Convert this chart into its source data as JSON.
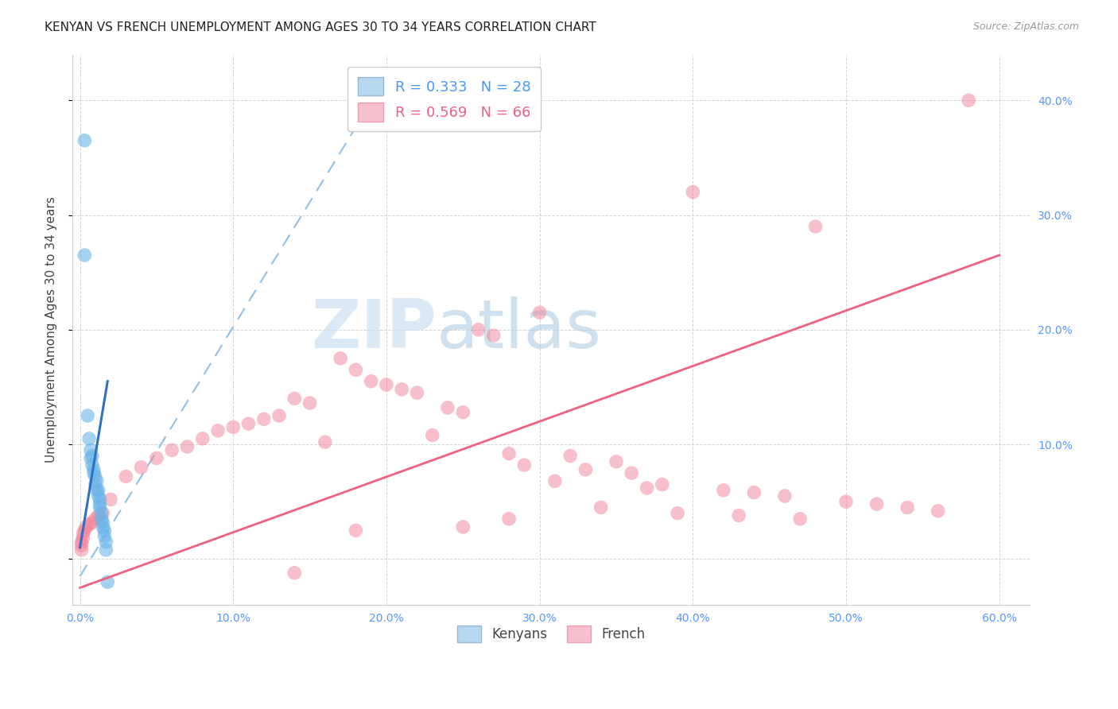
{
  "title": "KENYAN VS FRENCH UNEMPLOYMENT AMONG AGES 30 TO 34 YEARS CORRELATION CHART",
  "source": "Source: ZipAtlas.com",
  "ylabel": "Unemployment Among Ages 30 to 34 years",
  "yticks": [
    0.0,
    0.1,
    0.2,
    0.3,
    0.4
  ],
  "ytick_labels_left": [
    "",
    "10.0%",
    "20.0%",
    "30.0%",
    "40.0%"
  ],
  "ytick_labels_right": [
    "",
    "10.0%",
    "20.0%",
    "30.0%",
    "40.0%"
  ],
  "xticks": [
    0.0,
    0.1,
    0.2,
    0.3,
    0.4,
    0.5,
    0.6
  ],
  "xtick_labels": [
    "0.0%",
    "10.0%",
    "20.0%",
    "30.0%",
    "40.0%",
    "50.0%",
    "60.0%"
  ],
  "xlim": [
    -0.005,
    0.62
  ],
  "ylim": [
    -0.04,
    0.44
  ],
  "watermark_zip": "ZIP",
  "watermark_atlas": "atlas",
  "kenyan_color": "#6ab4e8",
  "french_color": "#f08098",
  "kenyan_line_color": "#3070c0",
  "french_line_color": "#f06080",
  "kenyan_dashed_color": "#90c0e8",
  "legend_label_kenyan": "R = 0.333   N = 28",
  "legend_label_french": "R = 0.569   N = 66",
  "legend_kenyan_patch": "#b8d8f0",
  "legend_french_patch": "#f8c0ce",
  "legend_text_kenyan": "#4499ff",
  "legend_text_french": "#f06080",
  "kenyan_scatter": [
    [
      0.003,
      0.365
    ],
    [
      0.003,
      0.265
    ],
    [
      0.005,
      0.125
    ],
    [
      0.006,
      0.105
    ],
    [
      0.007,
      0.095
    ],
    [
      0.007,
      0.088
    ],
    [
      0.008,
      0.09
    ],
    [
      0.008,
      0.082
    ],
    [
      0.009,
      0.078
    ],
    [
      0.009,
      0.075
    ],
    [
      0.01,
      0.072
    ],
    [
      0.01,
      0.065
    ],
    [
      0.011,
      0.068
    ],
    [
      0.011,
      0.06
    ],
    [
      0.012,
      0.06
    ],
    [
      0.012,
      0.055
    ],
    [
      0.013,
      0.052
    ],
    [
      0.013,
      0.048
    ],
    [
      0.013,
      0.045
    ],
    [
      0.014,
      0.04
    ],
    [
      0.014,
      0.035
    ],
    [
      0.015,
      0.032
    ],
    [
      0.015,
      0.028
    ],
    [
      0.016,
      0.025
    ],
    [
      0.016,
      0.02
    ],
    [
      0.017,
      0.015
    ],
    [
      0.017,
      0.008
    ],
    [
      0.018,
      -0.02
    ]
  ],
  "french_scatter": [
    [
      0.58,
      0.4
    ],
    [
      0.4,
      0.32
    ],
    [
      0.48,
      0.29
    ],
    [
      0.3,
      0.215
    ],
    [
      0.26,
      0.2
    ],
    [
      0.27,
      0.195
    ],
    [
      0.17,
      0.175
    ],
    [
      0.18,
      0.165
    ],
    [
      0.19,
      0.155
    ],
    [
      0.2,
      0.152
    ],
    [
      0.21,
      0.148
    ],
    [
      0.22,
      0.145
    ],
    [
      0.14,
      0.14
    ],
    [
      0.15,
      0.136
    ],
    [
      0.24,
      0.132
    ],
    [
      0.25,
      0.128
    ],
    [
      0.13,
      0.125
    ],
    [
      0.12,
      0.122
    ],
    [
      0.11,
      0.118
    ],
    [
      0.1,
      0.115
    ],
    [
      0.09,
      0.112
    ],
    [
      0.23,
      0.108
    ],
    [
      0.08,
      0.105
    ],
    [
      0.16,
      0.102
    ],
    [
      0.07,
      0.098
    ],
    [
      0.06,
      0.095
    ],
    [
      0.28,
      0.092
    ],
    [
      0.32,
      0.09
    ],
    [
      0.05,
      0.088
    ],
    [
      0.35,
      0.085
    ],
    [
      0.29,
      0.082
    ],
    [
      0.04,
      0.08
    ],
    [
      0.33,
      0.078
    ],
    [
      0.36,
      0.075
    ],
    [
      0.03,
      0.072
    ],
    [
      0.31,
      0.068
    ],
    [
      0.38,
      0.065
    ],
    [
      0.37,
      0.062
    ],
    [
      0.42,
      0.06
    ],
    [
      0.44,
      0.058
    ],
    [
      0.46,
      0.055
    ],
    [
      0.02,
      0.052
    ],
    [
      0.5,
      0.05
    ],
    [
      0.52,
      0.048
    ],
    [
      0.54,
      0.045
    ],
    [
      0.56,
      0.042
    ],
    [
      0.015,
      0.04
    ],
    [
      0.012,
      0.038
    ],
    [
      0.01,
      0.035
    ],
    [
      0.008,
      0.032
    ],
    [
      0.006,
      0.03
    ],
    [
      0.004,
      0.028
    ],
    [
      0.003,
      0.025
    ],
    [
      0.002,
      0.022
    ],
    [
      0.002,
      0.018
    ],
    [
      0.001,
      0.015
    ],
    [
      0.001,
      0.012
    ],
    [
      0.001,
      0.008
    ],
    [
      0.34,
      0.045
    ],
    [
      0.39,
      0.04
    ],
    [
      0.43,
      0.038
    ],
    [
      0.47,
      0.035
    ],
    [
      0.28,
      0.035
    ],
    [
      0.25,
      0.028
    ],
    [
      0.18,
      0.025
    ],
    [
      0.14,
      -0.012
    ]
  ],
  "kenyan_trendline_solid": [
    [
      0.0,
      0.01
    ],
    [
      0.018,
      0.155
    ]
  ],
  "kenyan_trendline_dashed": [
    [
      0.0,
      -0.015
    ],
    [
      0.2,
      0.42
    ]
  ],
  "french_trendline": [
    [
      0.0,
      -0.025
    ],
    [
      0.6,
      0.265
    ]
  ]
}
